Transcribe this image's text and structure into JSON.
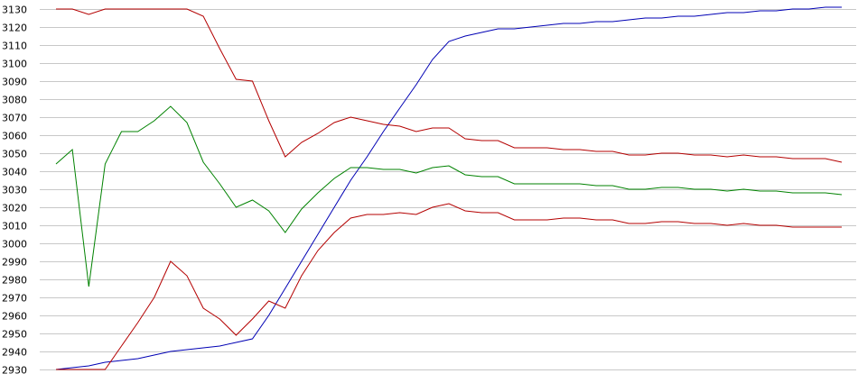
{
  "chart_data": {
    "type": "line",
    "title": "",
    "xlabel": "",
    "ylabel": "",
    "ylim": [
      2930,
      3130
    ],
    "y_ticks": [
      2930,
      2940,
      2950,
      2960,
      2970,
      2980,
      2990,
      3000,
      3010,
      3020,
      3030,
      3040,
      3050,
      3060,
      3070,
      3080,
      3090,
      3100,
      3110,
      3120,
      3130
    ],
    "grid": true,
    "legend": "none",
    "x": [
      0,
      1,
      2,
      3,
      4,
      5,
      6,
      7,
      8,
      9,
      10,
      11,
      12,
      13,
      14,
      15,
      16,
      17,
      18,
      19,
      20,
      21,
      22,
      23,
      24,
      25,
      26,
      27,
      28,
      29,
      30,
      31,
      32,
      33,
      34,
      35,
      36,
      37,
      38,
      39,
      40,
      41,
      42,
      43,
      44,
      45,
      46,
      47,
      48
    ],
    "series": [
      {
        "color": "#0000b4",
        "values": [
          2930,
          2931,
          2932,
          2934,
          2935,
          2936,
          2938,
          2940,
          2941,
          2942,
          2943,
          2945,
          2947,
          2960,
          2975,
          2990,
          3005,
          3020,
          3035,
          3048,
          3062,
          3075,
          3088,
          3102,
          3112,
          3115,
          3117,
          3119,
          3119,
          3120,
          3121,
          3122,
          3122,
          3123,
          3123,
          3124,
          3125,
          3125,
          3126,
          3126,
          3127,
          3128,
          3128,
          3129,
          3129,
          3130,
          3130,
          3131,
          3131
        ]
      },
      {
        "color": "#b40000",
        "values": [
          3130,
          3130,
          3127,
          3130,
          3130,
          3130,
          3130,
          3130,
          3130,
          3126,
          3108,
          3091,
          3090,
          3068,
          3048,
          3056,
          3061,
          3067,
          3070,
          3068,
          3066,
          3065,
          3062,
          3064,
          3064,
          3058,
          3057,
          3057,
          3053,
          3053,
          3053,
          3052,
          3052,
          3051,
          3051,
          3049,
          3049,
          3050,
          3050,
          3049,
          3049,
          3048,
          3049,
          3048,
          3048,
          3047,
          3047,
          3047,
          3045
        ]
      },
      {
        "color": "#008200",
        "values": [
          3044,
          3052,
          2976,
          3044,
          3062,
          3062,
          3068,
          3076,
          3067,
          3045,
          3033,
          3020,
          3024,
          3018,
          3006,
          3019,
          3028,
          3036,
          3042,
          3042,
          3041,
          3041,
          3039,
          3042,
          3043,
          3038,
          3037,
          3037,
          3033,
          3033,
          3033,
          3033,
          3033,
          3032,
          3032,
          3030,
          3030,
          3031,
          3031,
          3030,
          3030,
          3029,
          3030,
          3029,
          3029,
          3028,
          3028,
          3028,
          3027
        ]
      },
      {
        "color": "#b40000",
        "values": [
          2930,
          2930,
          2930,
          2930,
          2943,
          2956,
          2970,
          2990,
          2982,
          2964,
          2958,
          2949,
          2958,
          2968,
          2964,
          2982,
          2996,
          3006,
          3014,
          3016,
          3016,
          3017,
          3016,
          3020,
          3022,
          3018,
          3017,
          3017,
          3013,
          3013,
          3013,
          3014,
          3014,
          3013,
          3013,
          3011,
          3011,
          3012,
          3012,
          3011,
          3011,
          3010,
          3011,
          3010,
          3010,
          3009,
          3009,
          3009,
          3009
        ]
      }
    ]
  }
}
